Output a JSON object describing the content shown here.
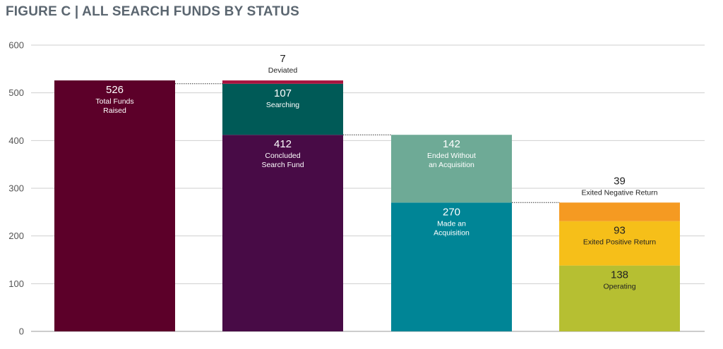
{
  "chart_data": {
    "type": "bar",
    "subtype": "stacked-waterfall",
    "title": "FIGURE C | ALL SEARCH FUNDS BY STATUS",
    "xlabel": "",
    "ylabel": "",
    "ylim": [
      0,
      600
    ],
    "yticks": [
      "0",
      "100",
      "200",
      "300",
      "400",
      "500",
      "600"
    ],
    "grid": true,
    "legend": "none",
    "columns": [
      {
        "segments": [
          {
            "name": "Total Funds Raised",
            "name_lines": [
              "Total Funds",
              "Raised"
            ],
            "value": 526,
            "value_label": "526",
            "color": "#5c0029",
            "text_color": "#ffffff",
            "label_position": "inside"
          }
        ]
      },
      {
        "segments": [
          {
            "name": "Concluded Search Fund",
            "name_lines": [
              "Concluded",
              "Search Fund"
            ],
            "value": 412,
            "value_label": "412",
            "color": "#480b46",
            "text_color": "#ffffff",
            "label_position": "inside"
          },
          {
            "name": "Searching",
            "name_lines": [
              "Searching"
            ],
            "value": 107,
            "value_label": "107",
            "color": "#005a57",
            "text_color": "#ffffff",
            "label_position": "inside"
          },
          {
            "name": "Deviated",
            "name_lines": [
              "Deviated"
            ],
            "value": 7,
            "value_label": "7",
            "color": "#a8133f",
            "text_color": "#222222",
            "label_position": "above"
          }
        ]
      },
      {
        "segments": [
          {
            "name": "Made an Acquisition",
            "name_lines": [
              "Made an",
              "Acquisition"
            ],
            "value": 270,
            "value_label": "270",
            "color": "#008596",
            "text_color": "#ffffff",
            "label_position": "inside"
          },
          {
            "name": "Ended Without an Acquisition",
            "name_lines": [
              "Ended Without",
              "an Acquisition"
            ],
            "value": 142,
            "value_label": "142",
            "color": "#6eaa96",
            "text_color": "#ffffff",
            "label_position": "inside"
          }
        ]
      },
      {
        "segments": [
          {
            "name": "Operating",
            "name_lines": [
              "Operating"
            ],
            "value": 138,
            "value_label": "138",
            "color": "#b6bf32",
            "text_color": "#222222",
            "label_position": "inside"
          },
          {
            "name": "Exited Positive Return",
            "name_lines": [
              "Exited Positive Return"
            ],
            "value": 93,
            "value_label": "93",
            "color": "#f6bf19",
            "text_color": "#222222",
            "label_position": "inside"
          },
          {
            "name": "Exited Negative Return",
            "name_lines": [
              "Exited Negative Return"
            ],
            "value": 39,
            "value_label": "39",
            "color": "#f59a22",
            "text_color": "#222222",
            "label_position": "above"
          }
        ]
      }
    ],
    "connectors": [
      {
        "from_column": 0,
        "to_column": 1,
        "value": 519
      },
      {
        "from_column": 1,
        "to_column": 2,
        "value": 412
      },
      {
        "from_column": 2,
        "to_column": 3,
        "value": 270
      }
    ]
  }
}
